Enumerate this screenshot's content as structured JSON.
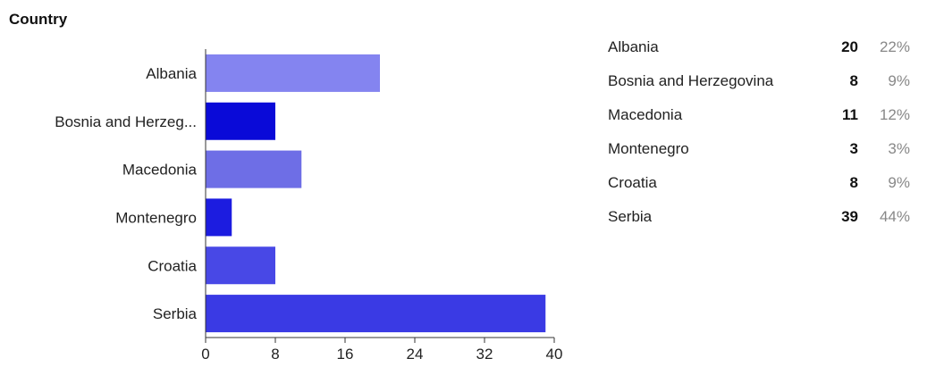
{
  "header": {
    "title": "Country"
  },
  "chart_data": {
    "type": "bar",
    "orientation": "horizontal",
    "categories": [
      "Albania",
      "Bosnia and Herzeg...",
      "Macedonia",
      "Montenegro",
      "Croatia",
      "Serbia"
    ],
    "values": [
      20,
      8,
      11,
      3,
      8,
      39
    ],
    "xlim": [
      0,
      40
    ],
    "xticks": [
      "0",
      "8",
      "16",
      "24",
      "32",
      "40"
    ],
    "colors": [
      "#8484f0",
      "#0a0ad8",
      "#6e6ee6",
      "#1c1ce0",
      "#4848e6",
      "#3a3ae4"
    ],
    "grid": false,
    "legend": "none"
  },
  "summary": {
    "rows": [
      {
        "label": "Albania",
        "count": "20",
        "percent": "22%"
      },
      {
        "label": "Bosnia and Herzegovina",
        "count": "8",
        "percent": "9%"
      },
      {
        "label": "Macedonia",
        "count": "11",
        "percent": "12%"
      },
      {
        "label": "Montenegro",
        "count": "3",
        "percent": "3%"
      },
      {
        "label": "Croatia",
        "count": "8",
        "percent": "9%"
      },
      {
        "label": "Serbia",
        "count": "39",
        "percent": "44%"
      }
    ]
  }
}
